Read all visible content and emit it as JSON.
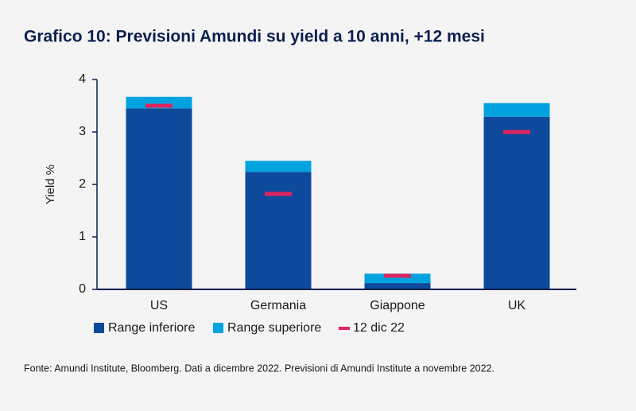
{
  "chart_data": {
    "type": "bar",
    "stacked": true,
    "title": "Grafico 10: Previsioni Amundi su yield a 10 anni, +12 mesi",
    "y_label": "Yield %",
    "categories": [
      "US",
      "Germania",
      "Giappone",
      "UK"
    ],
    "series": [
      {
        "name": "Range inferiore",
        "color": "#0d4a9c",
        "values": [
          3.45,
          2.24,
          0.12,
          3.29
        ]
      },
      {
        "name": "Range superiore",
        "color": "#00a3e0",
        "values": [
          0.22,
          0.21,
          0.18,
          0.26
        ]
      },
      {
        "name": "12 dic 22",
        "color": "#e0245e",
        "type": "marker",
        "values": [
          3.5,
          1.82,
          0.26,
          3.0
        ]
      }
    ],
    "ylim": [
      0,
      4
    ],
    "yticks": [
      0,
      1,
      2,
      3,
      4
    ],
    "source": "Fonte: Amundi Institute, Bloomberg. Dati a dicembre 2022. Previsioni di Amundi Institute a novembre 2022."
  }
}
